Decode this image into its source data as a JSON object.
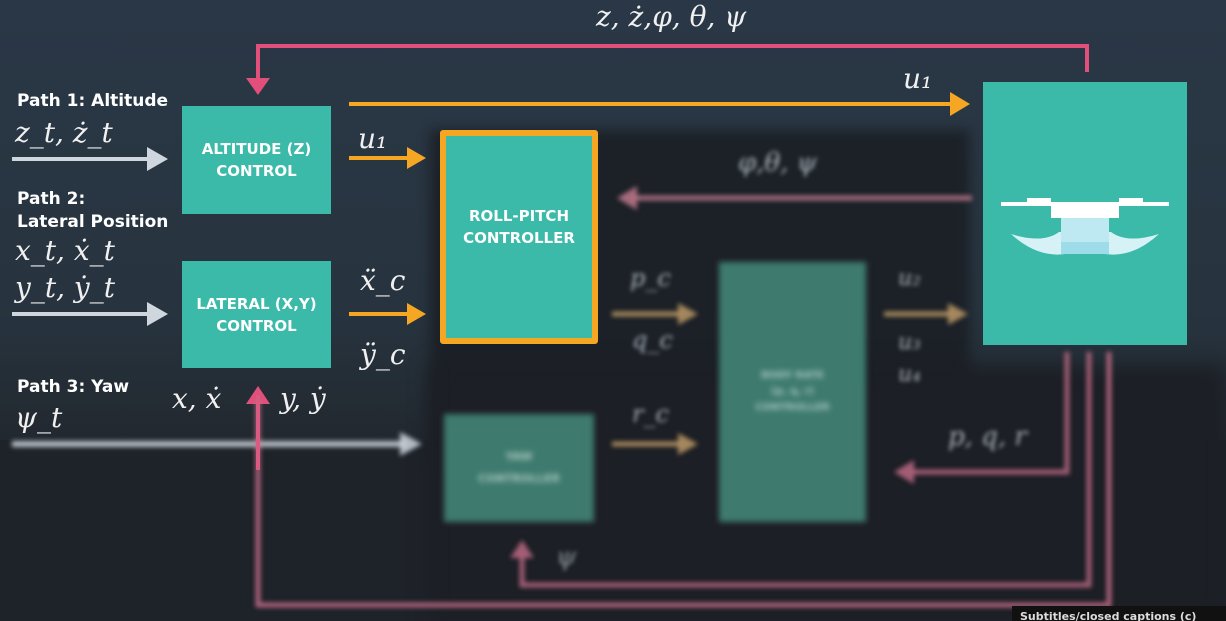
{
  "top_feedback_label": "z, ż,φ, θ, ψ",
  "paths": {
    "path1_title": "Path 1: Altitude",
    "path1_math": "z_t, ż_t",
    "path2_title_line1": "Path 2:",
    "path2_title_line2": "Lateral Position",
    "path2_math1": "x_t, ẋ_t",
    "path2_math2": "y_t, ẏ_t",
    "path3_title": "Path 3: Yaw",
    "path3_math": "ψ_t"
  },
  "blocks": {
    "altitude_line1": "ALTITUDE (Z)",
    "altitude_line2": "CONTROL",
    "lateral_line1": "LATERAL (X,Y)",
    "lateral_line2": "CONTROL",
    "roll_pitch_line1": "ROLL-PITCH",
    "roll_pitch_line2": "CONTROL­LER",
    "yaw_line1": "YAW",
    "yaw_line2": "CONTROLLER",
    "body_rate_line1": "BODY RATE",
    "body_rate_line2": "(p, q, r)",
    "body_rate_line3": "CONTROLLER"
  },
  "signals": {
    "u1_top": "u₁",
    "u1_mid": "u₁",
    "xc_dd": "ẍ_c",
    "yc_dd": "ÿ_c",
    "xy_feedback_left": "x, ẋ",
    "xy_feedback_right": "y, ẏ",
    "angles_feedback": "φ,θ, ψ",
    "pc": "p_c",
    "qc": "q_c",
    "rc": "r_c",
    "u2": "u₂",
    "u3": "u₃",
    "u4": "u₄",
    "pqr_feedback": "p, q, r",
    "psi_feedback": "ψ"
  },
  "captions_button": "Subtitles/closed captions (c)",
  "colors": {
    "teal": "#3bbaa9",
    "orange": "#f5a623",
    "pink": "#e0507a",
    "gray_arrow": "#cfd6de"
  }
}
